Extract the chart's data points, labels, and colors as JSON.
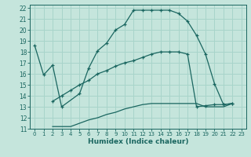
{
  "xlabel": "Humidex (Indice chaleur)",
  "xlim": [
    -0.5,
    23.5
  ],
  "ylim": [
    11,
    22.3
  ],
  "xticks": [
    0,
    1,
    2,
    3,
    4,
    5,
    6,
    7,
    8,
    9,
    10,
    11,
    12,
    13,
    14,
    15,
    16,
    17,
    18,
    19,
    20,
    21,
    22,
    23
  ],
  "yticks": [
    11,
    12,
    13,
    14,
    15,
    16,
    17,
    18,
    19,
    20,
    21,
    22
  ],
  "background_color": "#c5e5dc",
  "grid_color": "#a8d4ca",
  "line_color": "#1a6660",
  "line1_x": [
    0,
    1,
    2,
    3,
    5,
    6,
    7,
    8,
    9,
    10,
    11,
    12,
    13,
    14,
    15,
    16,
    17,
    18,
    19,
    20,
    21,
    22
  ],
  "line1_y": [
    18.6,
    15.9,
    16.8,
    13.0,
    14.2,
    16.5,
    18.1,
    18.8,
    20.0,
    20.5,
    21.8,
    21.8,
    21.8,
    21.8,
    21.8,
    21.5,
    20.8,
    19.5,
    17.8,
    15.1,
    13.2,
    13.3
  ],
  "line2_x": [
    2,
    3,
    4,
    5,
    6,
    7,
    8,
    9,
    10,
    11,
    12,
    13,
    14,
    15,
    16,
    17,
    18,
    19,
    20,
    21,
    22
  ],
  "line2_y": [
    13.5,
    14.0,
    14.5,
    15.0,
    15.4,
    16.0,
    16.3,
    16.7,
    17.0,
    17.2,
    17.5,
    17.8,
    18.0,
    18.0,
    18.0,
    17.8,
    13.0,
    13.1,
    13.2,
    13.2,
    13.3
  ],
  "line3_x": [
    2,
    3,
    4,
    5,
    6,
    7,
    8,
    9,
    10,
    11,
    12,
    13,
    14,
    15,
    16,
    17,
    18,
    19,
    20,
    21,
    22
  ],
  "line3_y": [
    11.2,
    11.2,
    11.2,
    11.5,
    11.8,
    12.0,
    12.3,
    12.5,
    12.8,
    13.0,
    13.2,
    13.3,
    13.3,
    13.3,
    13.3,
    13.3,
    13.3,
    13.0,
    13.0,
    13.0,
    13.3
  ]
}
